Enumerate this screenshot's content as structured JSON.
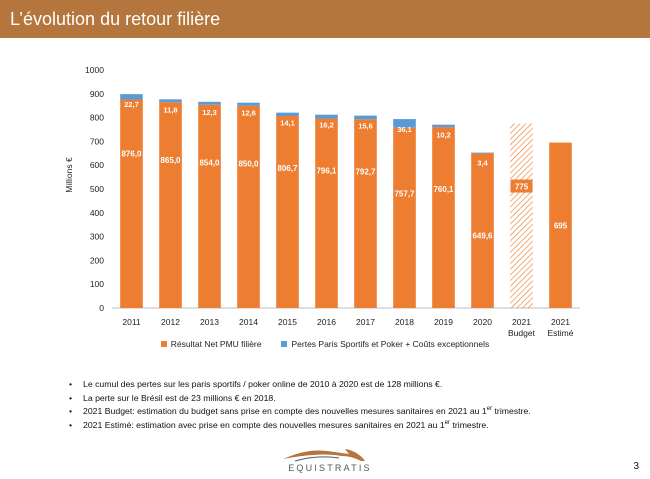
{
  "slide": {
    "title": "L’évolution du retour filière",
    "page_number": "3",
    "logo_text": "EQUISTRATIS"
  },
  "colors": {
    "header": "#b4763c",
    "primary_series": "#ed7d31",
    "secondary_series": "#5b9bd5"
  },
  "chart_data": {
    "type": "bar",
    "stacked": true,
    "categories": [
      "2011",
      "2012",
      "2013",
      "2014",
      "2015",
      "2016",
      "2017",
      "2018",
      "2019",
      "2020",
      "2021",
      "2021"
    ],
    "category_sublabels": [
      "",
      "",
      "",
      "",
      "",
      "",
      "",
      "",
      "",
      "",
      "Budget",
      "Estimé"
    ],
    "series": [
      {
        "name": "Résultat Net PMU filière",
        "color": "#ed7d31",
        "values": [
          876.0,
          865.0,
          854.0,
          850.0,
          806.7,
          796.1,
          792.7,
          757.7,
          760.1,
          649.6,
          775,
          695
        ],
        "labels": [
          "876,0",
          "865,0",
          "854,0",
          "850,0",
          "806,7",
          "796,1",
          "792,7",
          "757,7",
          "760,1",
          "649,6",
          "775",
          "695"
        ]
      },
      {
        "name": "Pertes Paris Sportifs et Poker + Coûts exceptionnels",
        "color": "#5b9bd5",
        "values": [
          22.7,
          11.8,
          12.3,
          12.6,
          14.1,
          16.2,
          15.6,
          36.1,
          10.2,
          3.4,
          0,
          0
        ],
        "labels": [
          "22,7",
          "11,8",
          "12,3",
          "12,6",
          "14,1",
          "16,2",
          "15,6",
          "36,1",
          "10,2",
          "3,4",
          "",
          ""
        ]
      }
    ],
    "hatched_categories": [
      "2021 Budget"
    ],
    "ylabel": "Millions €",
    "ylim": [
      0,
      1000
    ],
    "yticks": [
      0,
      100,
      200,
      300,
      400,
      500,
      600,
      700,
      800,
      900,
      1000
    ],
    "grid": false,
    "legend_position": "bottom"
  },
  "notes": [
    {
      "text": "Le cumul des pertes sur les paris sportifs / poker online de 2010 à 2020 est de 128 millions €."
    },
    {
      "text": "La perte sur le Brésil est de 23 millions € en 2018."
    },
    {
      "text": "2021 Budget: estimation du budget sans prise en compte des nouvelles mesures sanitaires en 2021 au 1",
      "sup": "er",
      "tail": " trimestre."
    },
    {
      "text": "2021 Estimé: estimation avec prise en compte des nouvelles mesures sanitaires en 2021 au 1",
      "sup": "er",
      "tail": " trimestre."
    }
  ]
}
